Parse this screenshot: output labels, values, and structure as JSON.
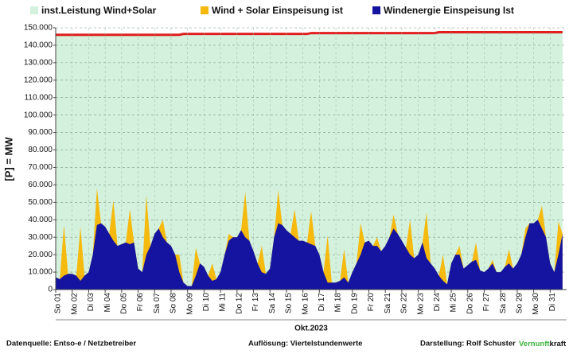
{
  "chart_data": {
    "type": "area",
    "ylabel": "[P] =  MW",
    "xlabel": "Okt.2023",
    "footer": {
      "source": "Datenquelle: Entso-e / Netzbetreiber",
      "resolution": "Auflösung: Viertelstundenwerte",
      "author": "Darstellung:  Rolf Schuster",
      "logo_a": "Vernunft",
      "logo_b": "kraft"
    },
    "x": [
      0,
      0.25,
      0.5,
      0.75,
      1,
      1.25,
      1.5,
      1.75,
      2,
      2.25,
      2.5,
      2.75,
      3,
      3.25,
      3.5,
      3.75,
      4,
      4.25,
      4.5,
      4.75,
      5,
      5.25,
      5.5,
      5.75,
      6,
      6.25,
      6.5,
      6.75,
      7,
      7.25,
      7.5,
      7.75,
      8,
      8.25,
      8.5,
      8.75,
      9,
      9.25,
      9.5,
      9.75,
      10,
      10.25,
      10.5,
      10.75,
      11,
      11.25,
      11.5,
      11.75,
      12,
      12.25,
      12.5,
      12.75,
      13,
      13.25,
      13.5,
      13.75,
      14,
      14.25,
      14.5,
      14.75,
      15,
      15.25,
      15.5,
      15.75,
      16,
      16.25,
      16.5,
      16.75,
      17,
      17.25,
      17.5,
      17.75,
      18,
      18.25,
      18.5,
      18.75,
      19,
      19.25,
      19.5,
      19.75,
      20,
      20.25,
      20.5,
      20.75,
      21,
      21.25,
      21.5,
      21.75,
      22,
      22.25,
      22.5,
      22.75,
      23,
      23.25,
      23.5,
      23.75,
      24,
      24.25,
      24.5,
      24.75,
      25,
      25.25,
      25.5,
      25.75,
      26,
      26.25,
      26.5,
      26.75,
      27,
      27.25,
      27.5,
      27.75,
      28,
      28.25,
      28.5,
      28.75,
      29,
      29.25,
      29.5,
      29.75,
      30,
      30.25,
      30.5,
      30.75
    ],
    "xlim": [
      0,
      31
    ],
    "xticks": [
      {
        "value": 0,
        "label": "So 01"
      },
      {
        "value": 1,
        "label": "Mo 02"
      },
      {
        "value": 2,
        "label": "Di 03"
      },
      {
        "value": 3,
        "label": "Mi 04"
      },
      {
        "value": 4,
        "label": "Do 05"
      },
      {
        "value": 5,
        "label": "Fr 06"
      },
      {
        "value": 6,
        "label": "Sa 07"
      },
      {
        "value": 7,
        "label": "So 08"
      },
      {
        "value": 8,
        "label": "Mo 09"
      },
      {
        "value": 9,
        "label": "Di 10"
      },
      {
        "value": 10,
        "label": "Mi 11"
      },
      {
        "value": 11,
        "label": "Do 12"
      },
      {
        "value": 12,
        "label": "Fr 13"
      },
      {
        "value": 13,
        "label": "Sa 14"
      },
      {
        "value": 14,
        "label": "So 15"
      },
      {
        "value": 15,
        "label": "Mo 16"
      },
      {
        "value": 16,
        "label": "Di 17"
      },
      {
        "value": 17,
        "label": "Mi 18"
      },
      {
        "value": 18,
        "label": "Do 19"
      },
      {
        "value": 19,
        "label": "Fr 20"
      },
      {
        "value": 20,
        "label": "Sa 21"
      },
      {
        "value": 21,
        "label": "So 22"
      },
      {
        "value": 22,
        "label": "Mo 23"
      },
      {
        "value": 23,
        "label": "Di 24"
      },
      {
        "value": 24,
        "label": "Mi 25"
      },
      {
        "value": 25,
        "label": "Do 26"
      },
      {
        "value": 26,
        "label": "Fr 27"
      },
      {
        "value": 27,
        "label": "Sa 28"
      },
      {
        "value": 28,
        "label": "So 29"
      },
      {
        "value": 29,
        "label": "Mo 30"
      },
      {
        "value": 30,
        "label": "Di 31"
      }
    ],
    "ylim": [
      0,
      150000
    ],
    "yticks": [
      {
        "value": 0,
        "label": "0"
      },
      {
        "value": 10000,
        "label": "10.000"
      },
      {
        "value": 20000,
        "label": "20.000"
      },
      {
        "value": 30000,
        "label": "30.000"
      },
      {
        "value": 40000,
        "label": "40.000"
      },
      {
        "value": 50000,
        "label": "50.000"
      },
      {
        "value": 60000,
        "label": "60.000"
      },
      {
        "value": 70000,
        "label": "70.000"
      },
      {
        "value": 80000,
        "label": "80.000"
      },
      {
        "value": 90000,
        "label": "90.000"
      },
      {
        "value": 100000,
        "label": "100.000"
      },
      {
        "value": 110000,
        "label": "110.000"
      },
      {
        "value": 120000,
        "label": "120.000"
      },
      {
        "value": 130000,
        "label": "130.000"
      },
      {
        "value": 140000,
        "label": "140.000"
      },
      {
        "value": 150000,
        "label": "150.000"
      }
    ],
    "grid": true,
    "series": [
      {
        "name": "inst.Leistung Wind+Solar",
        "color": "#d3f1dc",
        "line_color": "#e01e1e",
        "values": [
          146000,
          146000,
          146000,
          146000,
          146000,
          146000,
          146000,
          146000,
          146000,
          146000,
          146000,
          146000,
          146000,
          146000,
          146000,
          146000,
          146000,
          146000,
          146000,
          146000,
          146000,
          146000,
          146000,
          146000,
          146000,
          146000,
          146000,
          146000,
          146000,
          146000,
          146000,
          146500,
          146500,
          146500,
          146500,
          146500,
          146500,
          146500,
          146500,
          146500,
          146500,
          146500,
          146500,
          146500,
          146500,
          146500,
          146500,
          146500,
          146500,
          146500,
          146500,
          146500,
          146500,
          146500,
          146500,
          146500,
          146500,
          146500,
          146500,
          146500,
          146500,
          146500,
          147000,
          147000,
          147000,
          147000,
          147000,
          147000,
          147000,
          147000,
          147000,
          147000,
          147000,
          147000,
          147000,
          147000,
          147000,
          147000,
          147000,
          147000,
          147000,
          147000,
          147000,
          147000,
          147000,
          147000,
          147000,
          147000,
          147000,
          147000,
          147000,
          147000,
          147000,
          147500,
          147500,
          147500,
          147500,
          147500,
          147500,
          147500,
          147500,
          147500,
          147500,
          147500,
          147500,
          147500,
          147500,
          147500,
          147500,
          147500,
          147500,
          147500,
          147500,
          147500,
          147500,
          147500,
          147500,
          147500,
          147500,
          147500,
          147500,
          147500,
          147500,
          147500
        ]
      },
      {
        "name": "Wind + Solar Einspeisung ist",
        "color": "#f6b90d",
        "values": [
          7000,
          6000,
          37000,
          9000,
          9000,
          8000,
          36000,
          8000,
          10000,
          20000,
          58000,
          38000,
          36000,
          32000,
          51000,
          25000,
          26000,
          27000,
          46000,
          27000,
          12000,
          10000,
          54000,
          25000,
          32000,
          35000,
          40000,
          27000,
          25000,
          20000,
          20000,
          4000,
          2000,
          2000,
          24000,
          15000,
          13000,
          8000,
          15000,
          6000,
          10000,
          20000,
          32000,
          30000,
          30000,
          34000,
          56000,
          28000,
          22000,
          15000,
          25000,
          9000,
          12000,
          30000,
          57000,
          37000,
          34000,
          32000,
          46000,
          28000,
          28000,
          27000,
          45000,
          25000,
          20000,
          10000,
          31000,
          4000,
          4000,
          5000,
          23000,
          4000,
          10000,
          15000,
          38000,
          27000,
          28000,
          25000,
          30000,
          22000,
          25000,
          30000,
          43000,
          32000,
          28000,
          24000,
          40000,
          18000,
          20000,
          27000,
          44000,
          15000,
          12000,
          8000,
          20000,
          3000,
          15000,
          20000,
          25000,
          12000,
          14000,
          16000,
          27000,
          11000,
          10000,
          12000,
          17000,
          10000,
          10000,
          13000,
          23000,
          12000,
          15000,
          20000,
          35000,
          38000,
          38000,
          40000,
          48000,
          30000,
          15000,
          10000,
          39000,
          32000
        ]
      },
      {
        "name": "Windenergie Einspeisung Ist",
        "color": "#1414a0",
        "values": [
          7000,
          6000,
          8000,
          9000,
          9000,
          8000,
          5000,
          8000,
          10000,
          20000,
          37000,
          38000,
          36000,
          32000,
          28000,
          25000,
          26000,
          27000,
          26000,
          27000,
          12000,
          10000,
          20000,
          25000,
          32000,
          35000,
          30000,
          27000,
          25000,
          20000,
          10000,
          4000,
          2000,
          2000,
          8000,
          15000,
          13000,
          8000,
          5000,
          6000,
          10000,
          20000,
          28000,
          30000,
          30000,
          34000,
          30000,
          28000,
          22000,
          15000,
          10000,
          9000,
          12000,
          30000,
          38000,
          37000,
          34000,
          32000,
          30000,
          28000,
          28000,
          27000,
          26000,
          25000,
          20000,
          10000,
          4000,
          4000,
          4000,
          5000,
          7000,
          4000,
          10000,
          15000,
          20000,
          27000,
          28000,
          25000,
          25000,
          22000,
          25000,
          30000,
          35000,
          32000,
          28000,
          24000,
          20000,
          18000,
          20000,
          27000,
          18000,
          15000,
          12000,
          8000,
          5000,
          3000,
          15000,
          20000,
          20000,
          12000,
          14000,
          16000,
          17000,
          11000,
          10000,
          12000,
          15000,
          10000,
          10000,
          13000,
          15000,
          12000,
          15000,
          20000,
          30000,
          38000,
          38000,
          40000,
          35000,
          30000,
          15000,
          10000,
          20000,
          32000
        ]
      }
    ]
  }
}
